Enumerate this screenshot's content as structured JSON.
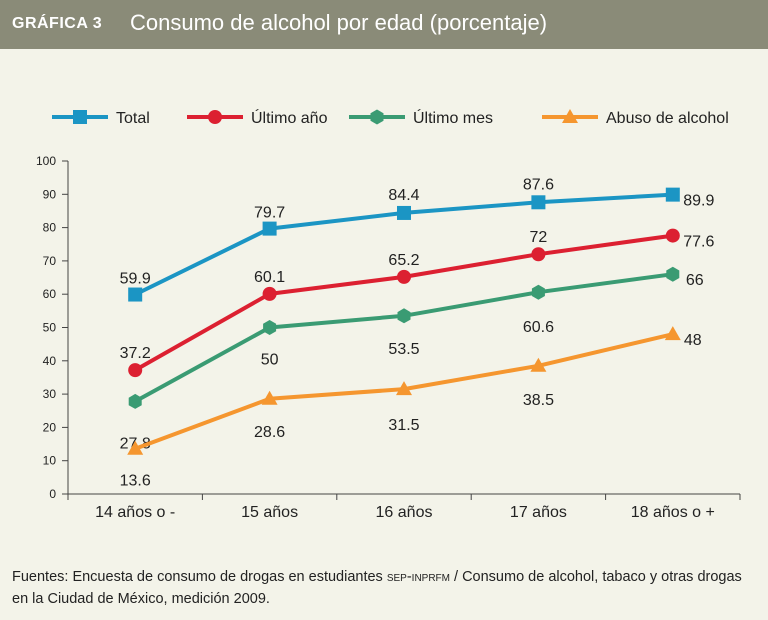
{
  "header": {
    "label": "GRÁFICA 3",
    "title": "Consumo de alcohol por edad (porcentaje)"
  },
  "chart_data": {
    "type": "line",
    "title": "Consumo de alcohol por edad (porcentaje)",
    "categories": [
      "14 años o -",
      "15 años",
      "16 años",
      "17 años",
      "18 años o +"
    ],
    "ylim": [
      0,
      100
    ],
    "yticks": [
      0,
      10,
      20,
      30,
      40,
      50,
      60,
      70,
      80,
      90,
      100
    ],
    "grid": false,
    "legend_position": "top",
    "series": [
      {
        "name": "Total",
        "color": "#1b95c4",
        "marker": "square",
        "values": [
          59.9,
          79.7,
          84.4,
          87.6,
          89.9
        ],
        "label_texts": [
          "59.9",
          "79.7",
          "84.4",
          "87.6",
          "89.9"
        ]
      },
      {
        "name": "Último año",
        "color": "#dc2031",
        "marker": "circle",
        "values": [
          37.2,
          60.1,
          65.2,
          72,
          77.6
        ],
        "label_texts": [
          "37.2",
          "60.1",
          "65.2",
          "72",
          "77.6"
        ]
      },
      {
        "name": "Último mes",
        "color": "#3a9b73",
        "marker": "hexagon",
        "values": [
          27.8,
          50,
          53.5,
          60.6,
          66
        ],
        "label_texts": [
          "27.8",
          "50",
          "53.5",
          "60.6",
          "66"
        ]
      },
      {
        "name": "Abuso de alcohol",
        "color": "#f5962f",
        "marker": "triangle",
        "values": [
          13.6,
          28.6,
          31.5,
          38.5,
          48
        ],
        "label_texts": [
          "13.6",
          "28.6",
          "31.5",
          "38.5",
          "48"
        ]
      }
    ]
  },
  "footer": {
    "prefix": "Fuentes: Encuesta de consumo de drogas en estudiantes ",
    "org": "sep-inprfm",
    "suffix": " / Consumo de alcohol, tabaco y otras drogas en la Ciudad de México, medición 2009."
  }
}
